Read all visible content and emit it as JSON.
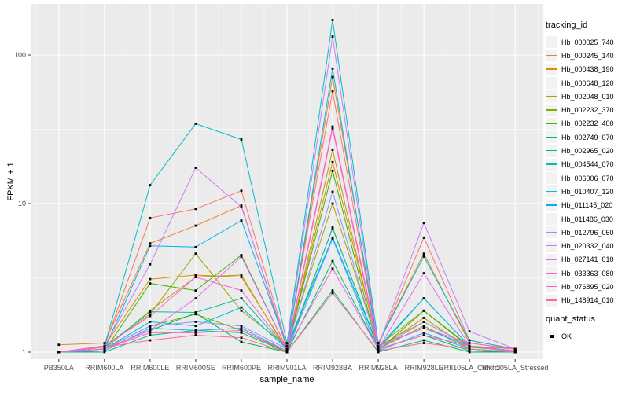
{
  "chart_data": {
    "type": "line",
    "title": "",
    "xlabel": "sample_name",
    "ylabel": "FPKM + 1",
    "yscale": "log10",
    "yticks": [
      1,
      10,
      100
    ],
    "ytick_labels": [
      "1",
      "10",
      "100"
    ],
    "yminor": [
      3.1623,
      31.623
    ],
    "ylim": [
      1,
      180
    ],
    "grid": "on",
    "legend_position": "right",
    "legend_title": "tracking_id",
    "point_legend": {
      "title": "quant_status",
      "items": [
        "OK"
      ]
    },
    "categories": [
      "PB350LA",
      "RRIM600LA",
      "RRIM600LE",
      "RRIM600SE",
      "RRIM600PE",
      "RRIM901LA",
      "RRIM928BA",
      "RRIM928LA",
      "RRIM928LE",
      "RRII105LA_Control",
      "RRII105LA_Stressed"
    ],
    "series": [
      {
        "name": "Hb_000025_740",
        "color": "#F8766D",
        "values": [
          1.0,
          1.1,
          8.0,
          9.2,
          12.2,
          1.1,
          57,
          1.1,
          5.9,
          1.2,
          1.05
        ]
      },
      {
        "name": "Hb_000245_140",
        "color": "#EA8331",
        "values": [
          1.12,
          1.15,
          5.4,
          7.1,
          9.7,
          1.05,
          71,
          1.15,
          4.6,
          1.15,
          1.05
        ]
      },
      {
        "name": "Hb_000438_190",
        "color": "#D89000",
        "values": [
          1.0,
          1.1,
          3.1,
          3.3,
          3.2,
          1.05,
          19,
          1.1,
          1.6,
          1.1,
          1.02
        ]
      },
      {
        "name": "Hb_000648_120",
        "color": "#C09B00",
        "values": [
          1.0,
          1.05,
          1.9,
          3.2,
          3.3,
          1.02,
          23,
          1.05,
          1.7,
          1.05,
          1.0
        ]
      },
      {
        "name": "Hb_002048_010",
        "color": "#A3A500",
        "values": [
          1.0,
          1.1,
          1.8,
          4.6,
          1.9,
          1.1,
          10,
          1.1,
          1.9,
          1.1,
          1.05
        ]
      },
      {
        "name": "Hb_002232_370",
        "color": "#7CAE00",
        "values": [
          1.0,
          1.05,
          1.5,
          1.8,
          1.4,
          1.0,
          6.9,
          1.05,
          1.5,
          1.05,
          1.0
        ]
      },
      {
        "name": "Hb_002232_400",
        "color": "#39B600",
        "values": [
          1.0,
          1.02,
          2.9,
          2.6,
          4.5,
          1.05,
          16.6,
          1.02,
          1.9,
          1.08,
          1.02
        ]
      },
      {
        "name": "Hb_002749_070",
        "color": "#00BB4E",
        "values": [
          1.0,
          1.05,
          1.4,
          1.83,
          1.17,
          1.0,
          4.1,
          1.05,
          1.3,
          1.02,
          1.0
        ]
      },
      {
        "name": "Hb_002965_020",
        "color": "#00BF7D",
        "values": [
          1.0,
          1.0,
          1.3,
          1.4,
          1.35,
          1.0,
          2.6,
          1.0,
          1.2,
          1.0,
          1.0
        ]
      },
      {
        "name": "Hb_004544_070",
        "color": "#00C1A3",
        "values": [
          1.0,
          1.08,
          1.87,
          1.85,
          2.3,
          1.05,
          6.8,
          1.08,
          2.3,
          1.1,
          1.02
        ]
      },
      {
        "name": "Hb_006006_070",
        "color": "#00BFC4",
        "values": [
          1.0,
          1.1,
          13.3,
          34.5,
          27.0,
          1.15,
          172,
          1.15,
          4.4,
          1.2,
          1.05
        ]
      },
      {
        "name": "Hb_010407_120",
        "color": "#00BAE0",
        "values": [
          1.0,
          1.05,
          1.6,
          1.5,
          2.0,
          1.05,
          81,
          1.05,
          2.3,
          1.1,
          1.02
        ]
      },
      {
        "name": "Hb_011145_020",
        "color": "#00B0F6",
        "values": [
          1.0,
          1.05,
          5.2,
          5.1,
          7.7,
          1.1,
          5.9,
          1.1,
          1.45,
          1.1,
          1.02
        ]
      },
      {
        "name": "Hb_011486_030",
        "color": "#35A2FF",
        "values": [
          1.0,
          1.02,
          1.45,
          1.4,
          1.45,
          1.02,
          5.8,
          1.02,
          1.35,
          1.05,
          1.0
        ]
      },
      {
        "name": "Hb_012796_050",
        "color": "#9590FF",
        "values": [
          1.0,
          1.05,
          1.5,
          1.6,
          1.5,
          1.05,
          12,
          1.05,
          1.6,
          1.1,
          1.0
        ]
      },
      {
        "name": "Hb_020332_040",
        "color": "#C77CFF",
        "values": [
          1.0,
          1.1,
          3.9,
          17.4,
          9.5,
          1.1,
          133,
          1.1,
          7.4,
          1.38,
          1.05
        ]
      },
      {
        "name": "Hb_027141_010",
        "color": "#E76BF3",
        "values": [
          1.0,
          1.05,
          1.4,
          2.3,
          4.4,
          1.05,
          3.65,
          1.05,
          3.4,
          1.1,
          1.02
        ]
      },
      {
        "name": "Hb_033363_080",
        "color": "#FA62DB",
        "values": [
          1.0,
          1.1,
          1.75,
          3.2,
          2.6,
          1.05,
          33,
          1.1,
          1.45,
          1.15,
          1.05
        ]
      },
      {
        "name": "Hb_076895_020",
        "color": "#FF62BC",
        "values": [
          1.0,
          1.05,
          1.35,
          1.35,
          1.4,
          1.02,
          32,
          1.05,
          1.3,
          1.1,
          1.0
        ]
      },
      {
        "name": "Hb_148914_010",
        "color": "#FF6A98",
        "values": [
          1.0,
          1.08,
          1.2,
          1.3,
          1.25,
          1.0,
          2.5,
          1.02,
          1.15,
          1.05,
          1.0
        ]
      }
    ]
  },
  "colors": {
    "panel_background": "#EBEBEB",
    "gridline": "#FFFFFF",
    "axis_text": "#4D4D4D",
    "axis_tick": "#333333",
    "point": "#000000",
    "legend_key_background": "#F2F2F2"
  }
}
